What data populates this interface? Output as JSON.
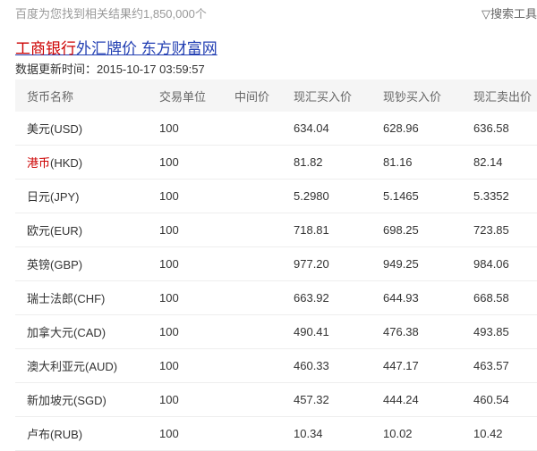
{
  "header": {
    "result_count": "百度为您找到相关结果约1,850,000个",
    "search_tools": "搜索工具",
    "filter_icon": "funnel-icon"
  },
  "result": {
    "title_highlight": "工商银行",
    "title_rest": "外汇牌价 东方财富网",
    "update_label": "数据更新时间：",
    "update_time": "2015-10-17 03:59:57"
  },
  "table": {
    "columns": [
      "货币名称",
      "交易单位",
      "中间价",
      "现汇买入价",
      "现钞买入价",
      "现汇卖出价"
    ],
    "rows": [
      {
        "name_hl": "",
        "name": "美元(USD)",
        "unit": "100",
        "mid": "",
        "xh_buy": "634.04",
        "xc_buy": "628.96",
        "sell": "636.58"
      },
      {
        "name_hl": "港币",
        "name": "(HKD)",
        "unit": "100",
        "mid": "",
        "xh_buy": "81.82",
        "xc_buy": "81.16",
        "sell": "82.14"
      },
      {
        "name_hl": "",
        "name": "日元(JPY)",
        "unit": "100",
        "mid": "",
        "xh_buy": "5.2980",
        "xc_buy": "5.1465",
        "sell": "5.3352"
      },
      {
        "name_hl": "",
        "name": "欧元(EUR)",
        "unit": "100",
        "mid": "",
        "xh_buy": "718.81",
        "xc_buy": "698.25",
        "sell": "723.85"
      },
      {
        "name_hl": "",
        "name": "英镑(GBP)",
        "unit": "100",
        "mid": "",
        "xh_buy": "977.20",
        "xc_buy": "949.25",
        "sell": "984.06"
      },
      {
        "name_hl": "",
        "name": "瑞士法郎(CHF)",
        "unit": "100",
        "mid": "",
        "xh_buy": "663.92",
        "xc_buy": "644.93",
        "sell": "668.58"
      },
      {
        "name_hl": "",
        "name": "加拿大元(CAD)",
        "unit": "100",
        "mid": "",
        "xh_buy": "490.41",
        "xc_buy": "476.38",
        "sell": "493.85"
      },
      {
        "name_hl": "",
        "name": "澳大利亚元(AUD)",
        "unit": "100",
        "mid": "",
        "xh_buy": "460.33",
        "xc_buy": "447.17",
        "sell": "463.57"
      },
      {
        "name_hl": "",
        "name": "新加坡元(SGD)",
        "unit": "100",
        "mid": "",
        "xh_buy": "457.32",
        "xc_buy": "444.24",
        "sell": "460.54"
      },
      {
        "name_hl": "",
        "name": "卢布(RUB)",
        "unit": "100",
        "mid": "",
        "xh_buy": "10.34",
        "xc_buy": "10.02",
        "sell": "10.42"
      }
    ]
  },
  "colors": {
    "link": "#2440b3",
    "highlight": "#cc0000"
  }
}
